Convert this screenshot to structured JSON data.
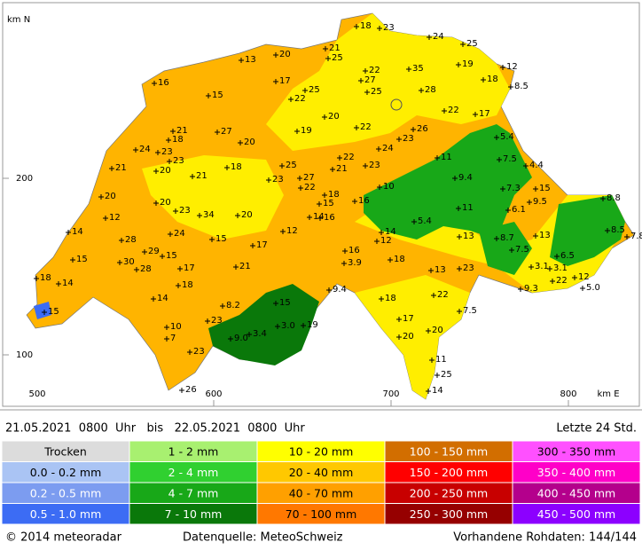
{
  "map": {
    "axis": {
      "north_unit": "km N",
      "east_unit": "km E",
      "y_200": "200",
      "y_100": "100",
      "x_500": "500",
      "x_600": "600",
      "x_700": "700",
      "x_800": "800"
    },
    "stations": [
      "18",
      "23",
      "24",
      "25",
      "21",
      "25",
      "20",
      "13",
      "35",
      "22",
      "19",
      "12",
      "27",
      "25",
      "28",
      "18",
      "8.5",
      "16",
      "15",
      "17",
      "25",
      "22",
      "22",
      "17",
      "20",
      "22",
      "26",
      "23",
      "21",
      "18",
      "27",
      "19",
      "24",
      "23",
      "20",
      "24",
      "11",
      "5.4",
      "7.5",
      "4.4",
      "21",
      "23",
      "20",
      "25",
      "22",
      "21",
      "23",
      "18",
      "21",
      "23",
      "27",
      "9.4",
      "7.3",
      "15",
      "10",
      "22",
      "18",
      "16",
      "20",
      "20",
      "9.5",
      "8.8",
      "11",
      "6.1",
      "12",
      "23",
      "34",
      "20",
      "14",
      "16",
      "5.4",
      "14",
      "12",
      "14",
      "13",
      "8.5",
      "7.8",
      "28",
      "24",
      "15",
      "17",
      "12",
      "13",
      "8.7",
      "16",
      "7.5",
      "29",
      "15",
      "30",
      "15",
      "3.9",
      "18",
      "6.5",
      "3.1",
      "3.1",
      "28",
      "17",
      "21",
      "23",
      "13",
      "18",
      "14",
      "22",
      "12",
      "9.4",
      "9.3",
      "5.0",
      "18",
      "14",
      "22",
      "18",
      "15",
      "8.2",
      "15",
      "7.5",
      "17",
      "23",
      "10",
      "20",
      "19",
      "3.0",
      "3.4",
      "9.0",
      "7",
      "20",
      "23",
      "11",
      "25",
      "26",
      "14",
      "15"
    ]
  },
  "header": {
    "period": "21.05.2021  0800  Uhr   bis   22.05.2021  0800  Uhr",
    "window": "Letzte 24 Std."
  },
  "legend": [
    {
      "label": "Trocken",
      "color": "#dcdcdc"
    },
    {
      "label": "0.0 - 0.2 mm",
      "color": "#aac4f4"
    },
    {
      "label": "0.2 - 0.5 mm",
      "color": "#7c9cf0"
    },
    {
      "label": "0.5 - 1.0 mm",
      "color": "#3c6cf4"
    },
    {
      "label": "1 - 2 mm",
      "color": "#a8f070"
    },
    {
      "label": "2 - 4 mm",
      "color": "#30d030"
    },
    {
      "label": "4 - 7 mm",
      "color": "#18a818"
    },
    {
      "label": "7 - 10 mm",
      "color": "#0a780a"
    },
    {
      "label": "10 - 20 mm",
      "color": "#ffff00"
    },
    {
      "label": "20 - 40 mm",
      "color": "#ffc800"
    },
    {
      "label": "40 - 70 mm",
      "color": "#ffa000"
    },
    {
      "label": "70 - 100 mm",
      "color": "#ff7800"
    },
    {
      "label": "100 - 150 mm",
      "color": "#d26e00"
    },
    {
      "label": "150 - 200 mm",
      "color": "#ff0000"
    },
    {
      "label": "200 - 250 mm",
      "color": "#c80000"
    },
    {
      "label": "250 - 300 mm",
      "color": "#960000"
    },
    {
      "label": "300 - 350 mm",
      "color": "#ff50ff"
    },
    {
      "label": "350 - 400 mm",
      "color": "#ff00c8"
    },
    {
      "label": "400 - 450 mm",
      "color": "#b4008c"
    },
    {
      "label": "450 - 500 mm",
      "color": "#8c00ff"
    }
  ],
  "footer": {
    "copyright": "© 2014  meteoradar",
    "source": "Datenquelle: MeteoSchweiz",
    "raw": "Vorhandene Rohdaten: 144/144"
  }
}
